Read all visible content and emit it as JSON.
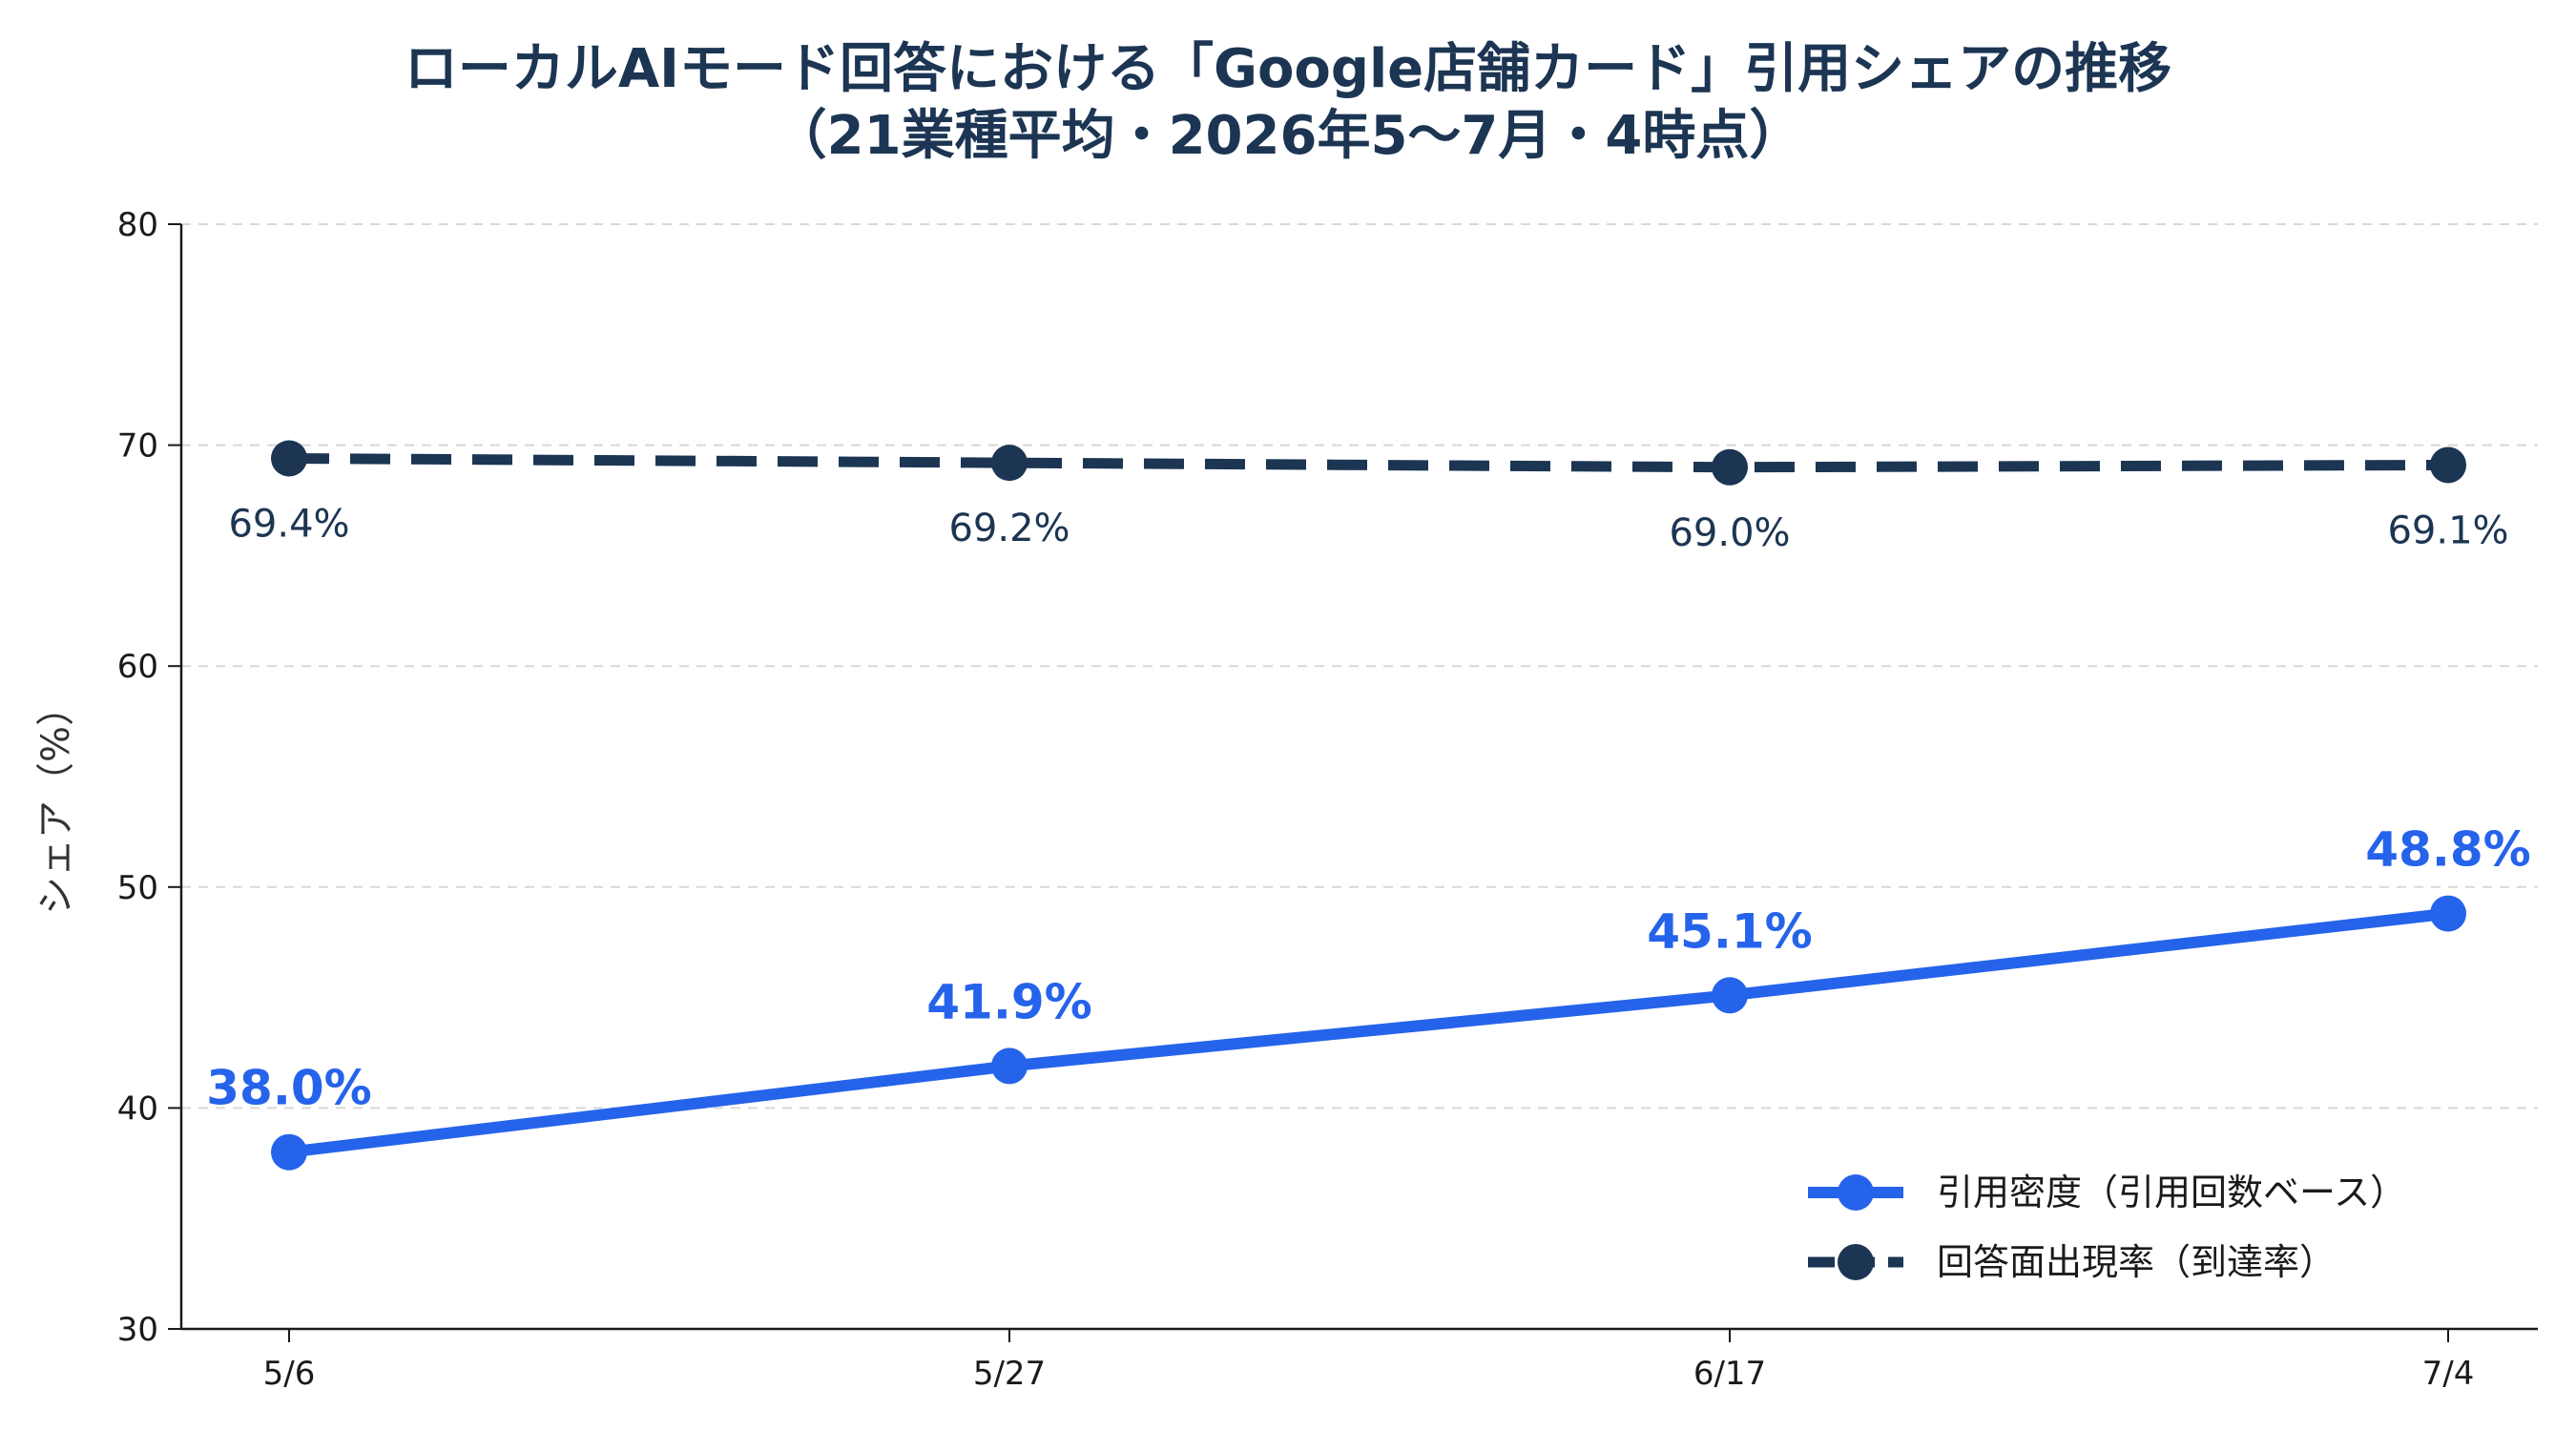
{
  "chart_data": {
    "type": "line",
    "title_lines": [
      "ローカルAIモード回答における「Google店舗カード」引用シェアの推移",
      "（21業種平均・2026年5〜7月・4時点）"
    ],
    "xlabel": "",
    "ylabel": "シェア（%）",
    "categories": [
      "5/6",
      "5/27",
      "6/17",
      "7/4"
    ],
    "ylim": [
      30,
      80
    ],
    "yticks": [
      30,
      40,
      50,
      60,
      70,
      80
    ],
    "grid": "horizontal-dashed",
    "legend_position": "lower-right",
    "series": [
      {
        "name": "引用密度（引用回数ベース）",
        "values": [
          38.0,
          41.9,
          45.1,
          48.8
        ],
        "labels": [
          "38.0%",
          "41.9%",
          "45.1%",
          "48.8%"
        ],
        "color": "#2563eb",
        "style": "solid"
      },
      {
        "name": "回答面出現率（到達率）",
        "values": [
          69.4,
          69.2,
          69.0,
          69.1
        ],
        "labels": [
          "69.4%",
          "69.2%",
          "69.0%",
          "69.1%"
        ],
        "color": "#1c3553",
        "style": "dashed"
      }
    ]
  }
}
